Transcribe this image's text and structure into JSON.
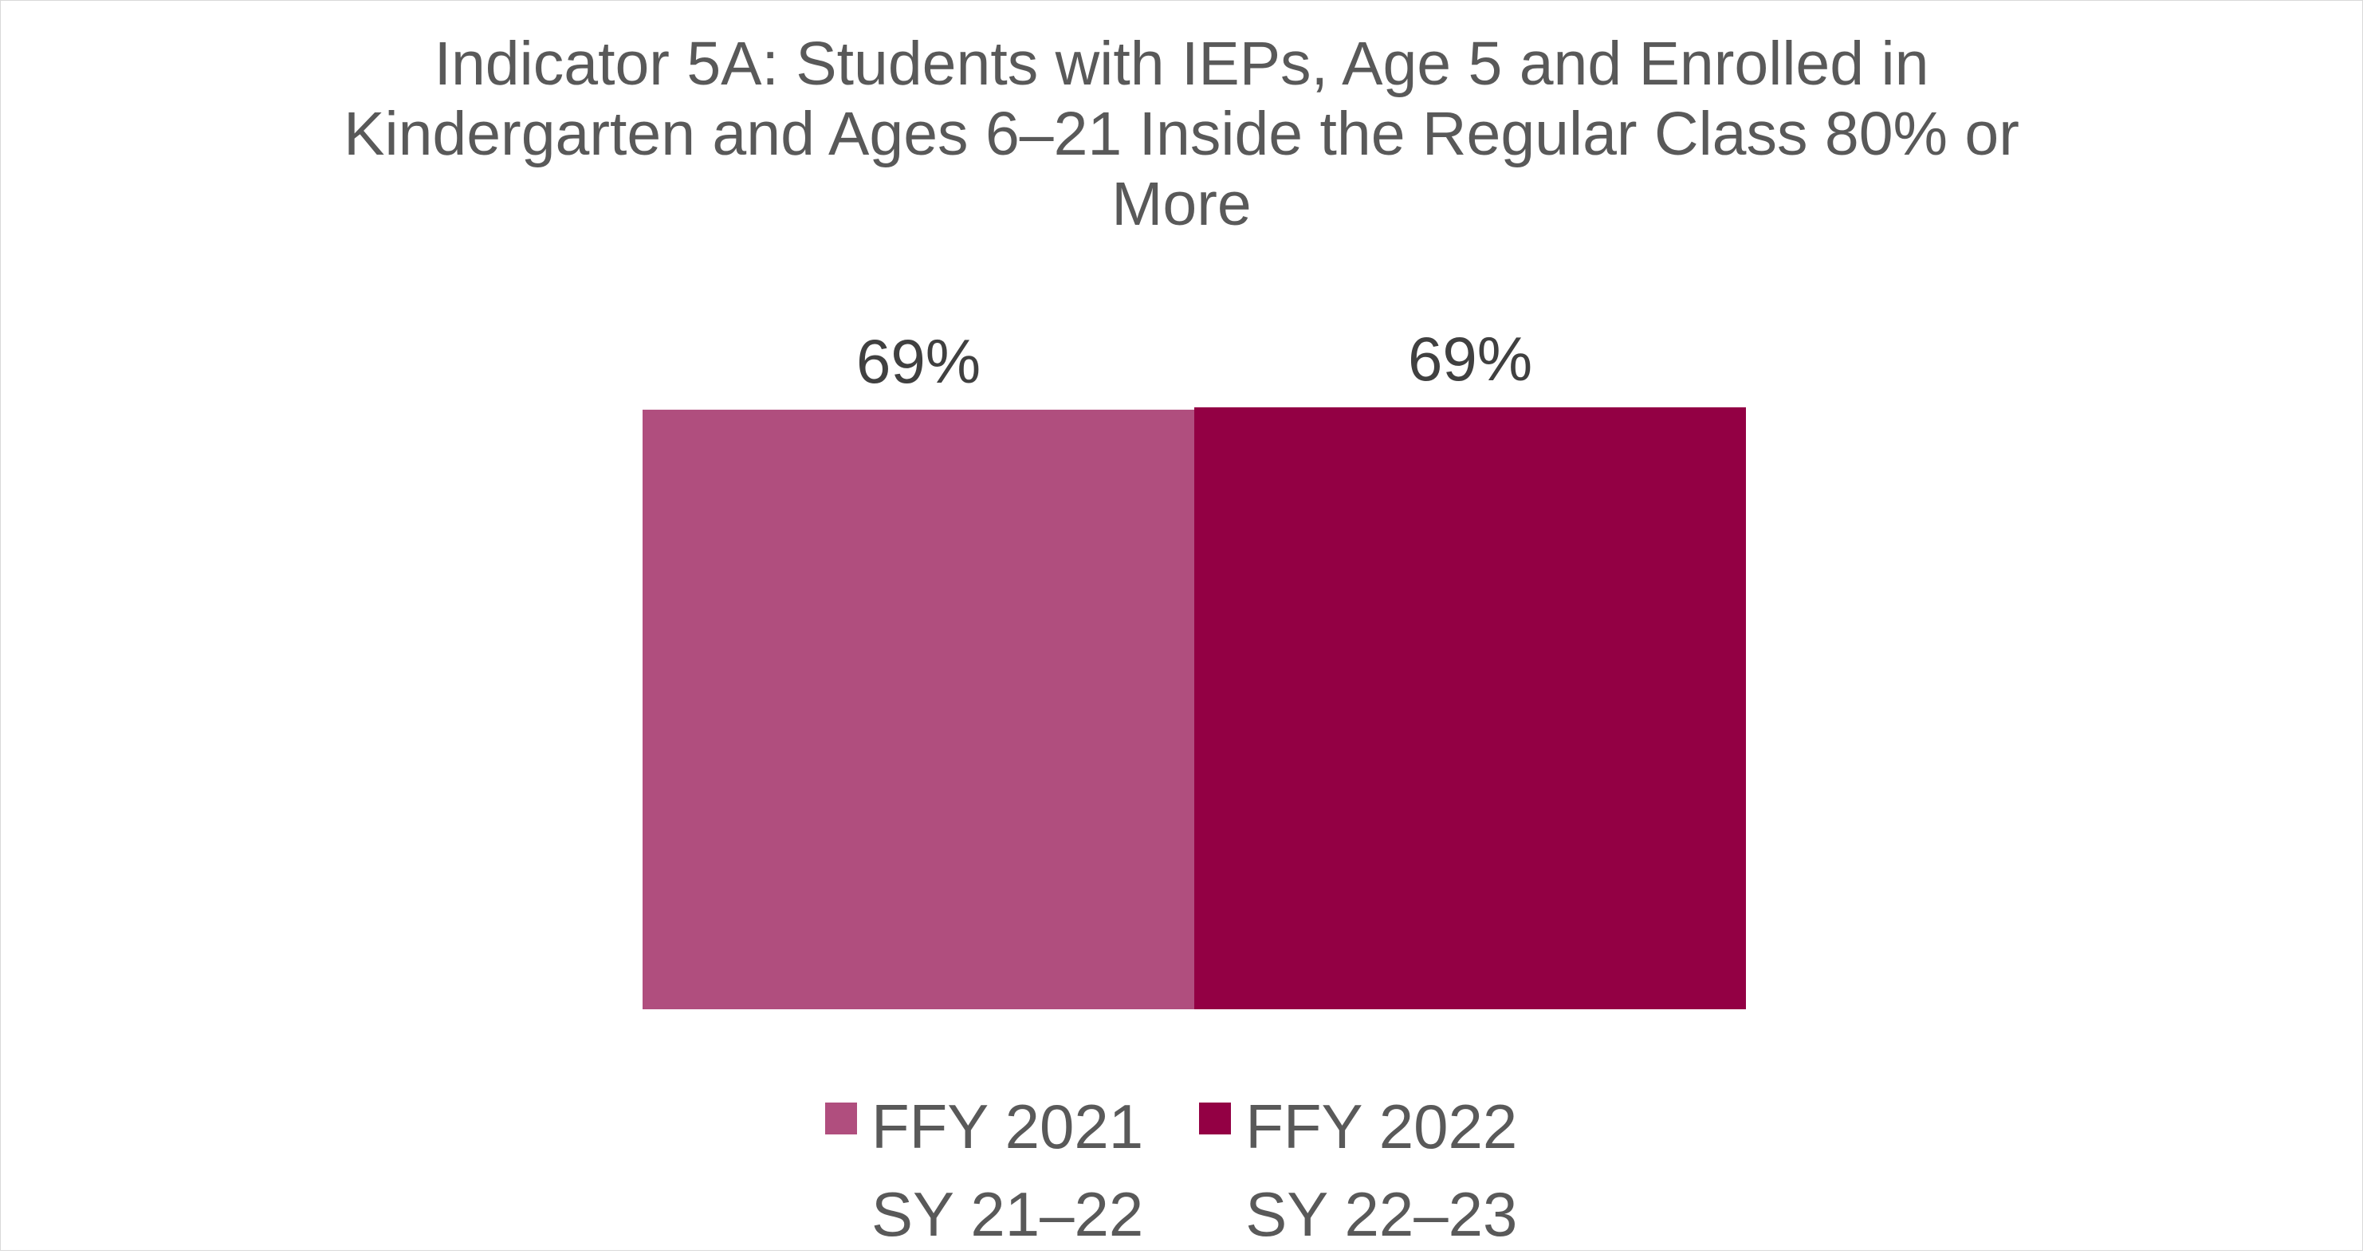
{
  "chart_data": {
    "type": "bar",
    "title_lines": [
      "Indicator 5A: Students with IEPs, Age 5 and Enrolled in",
      "Kindergarten and Ages 6–21 Inside the Regular Class 80% or",
      "More"
    ],
    "series": [
      {
        "name_lines": [
          "FFY 2021",
          "SY 21–22"
        ],
        "value": 69,
        "label": "69%",
        "color": "#b04e7e"
      },
      {
        "name_lines": [
          "FFY 2022",
          "SY 22–23"
        ],
        "value": 69,
        "label": "69%",
        "color": "#930044"
      }
    ],
    "ylim": [
      0,
      100
    ],
    "grid": false,
    "legend_position": "bottom"
  }
}
